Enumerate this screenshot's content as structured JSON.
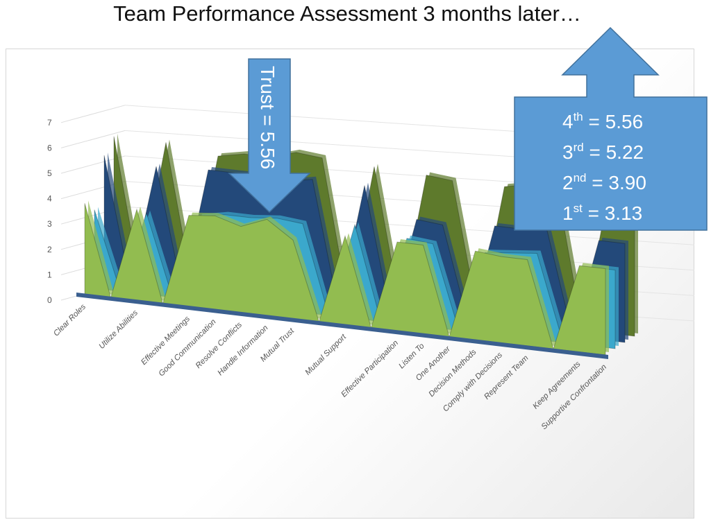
{
  "title": "Team Performance Assessment 3 months later…",
  "chart_data": {
    "type": "area",
    "subtype": "3d-area",
    "title": "Team Performance Assessment 3 months later…",
    "xlabel": "",
    "ylabel": "",
    "ylim": [
      0,
      7
    ],
    "yticks": [
      0,
      1,
      2,
      3,
      4,
      5,
      6,
      7
    ],
    "grid": true,
    "legend": "none",
    "categories": [
      "Clear Roles",
      "",
      "Utilize Abilities",
      "",
      "Effective Meetings",
      "Good Communication",
      "Resolve Conflicts",
      "Handle Information",
      "Mutual Trust",
      "",
      "Mutual Support",
      "",
      "Effective Participation",
      "Listen To",
      "One Another",
      "Decision Methods",
      "Comply with Decisions",
      "Represent Team",
      "",
      "Keep Agreements",
      "Supportive Confrontation"
    ],
    "series": [
      {
        "color": "#5e7a2c",
        "values": [
          5.5,
          0,
          5.5,
          0,
          5.2,
          5.4,
          5.4,
          5.7,
          5.6,
          0,
          5.5,
          0,
          5.4,
          5.3,
          0,
          5.3,
          5.5,
          5.6,
          0,
          5.6,
          5.6
        ]
      },
      {
        "color": "#23497a",
        "values": [
          5.0,
          0,
          4.8,
          0,
          4.9,
          4.9,
          4.9,
          4.8,
          5.0,
          0,
          5.0,
          0,
          3.9,
          3.8,
          0,
          4.0,
          4.0,
          4.1,
          0,
          3.9,
          3.9
        ]
      },
      {
        "color": "#3ba8cc",
        "values": [
          3.1,
          0,
          3.2,
          0,
          3.3,
          3.5,
          3.5,
          3.6,
          3.5,
          0,
          3.7,
          0,
          3.4,
          3.3,
          0,
          3.2,
          3.3,
          3.4,
          0,
          3.1,
          3.1
        ]
      },
      {
        "color": "#92bc50",
        "values": [
          3.6,
          0,
          3.6,
          0,
          3.6,
          3.7,
          3.4,
          3.8,
          3.1,
          0,
          3.5,
          0,
          3.5,
          3.5,
          0,
          3.5,
          3.4,
          3.4,
          0,
          3.4,
          3.4
        ]
      }
    ]
  },
  "callouts": {
    "trust": "Trust = 5.56",
    "color": "#5b9bd5",
    "ranks": [
      {
        "ord": "4",
        "sup": "th",
        "value": " = 5.56"
      },
      {
        "ord": "3",
        "sup": "rd",
        "value": " = 5.22"
      },
      {
        "ord": "2",
        "sup": "nd",
        "value": " = 3.90"
      },
      {
        "ord": "1",
        "sup": "st",
        "value": " =  3.13"
      }
    ]
  }
}
